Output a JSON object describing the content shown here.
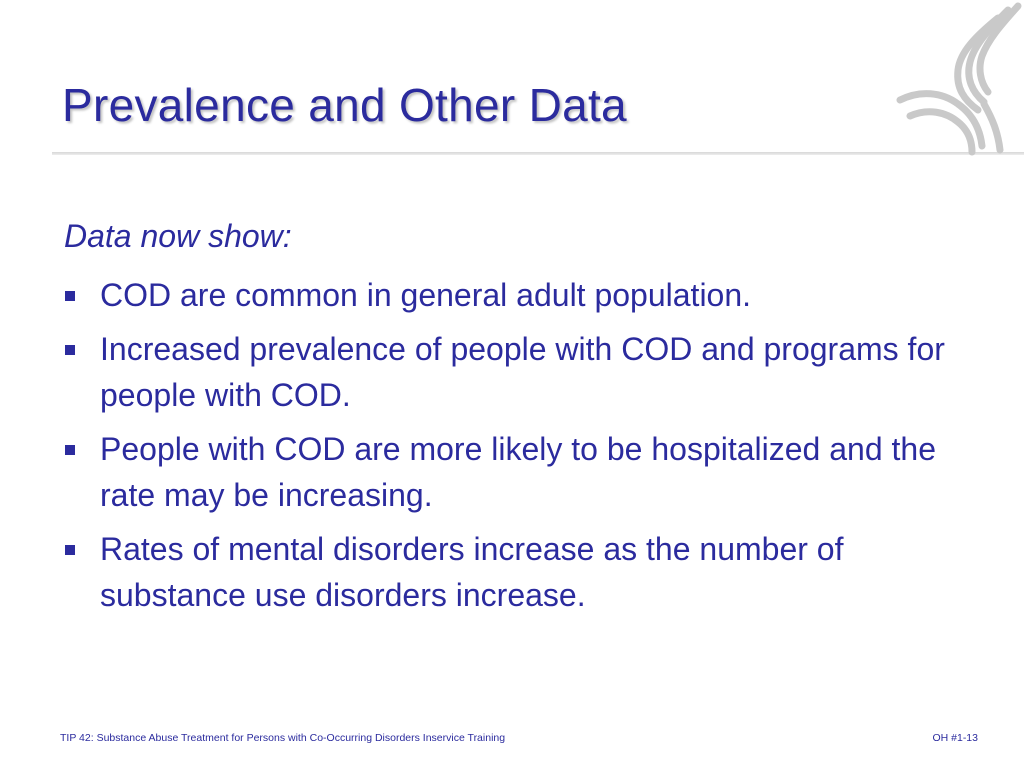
{
  "slide": {
    "title": "Prevalence and Other Data",
    "intro": "Data now show:",
    "bullets": [
      "COD are common in general adult population.",
      "Increased prevalence of people with COD and programs for people with COD.",
      "People with COD are more likely to be hospitalized and the rate may be increasing.",
      "Rates of mental disorders increase as the number of substance use disorders increase."
    ],
    "footer": {
      "left": "TIP 42: Substance Abuse Treatment for Persons with Co-Occurring Disorders Inservice Training",
      "right": "OH #1-13"
    }
  },
  "colors": {
    "text": "#2b2b9e",
    "rule": "#dcdcdc",
    "logo": "#c9c9c9"
  },
  "icons": {
    "logo": "hhs-eagle-logo",
    "bullet": "square-bullet-icon"
  }
}
